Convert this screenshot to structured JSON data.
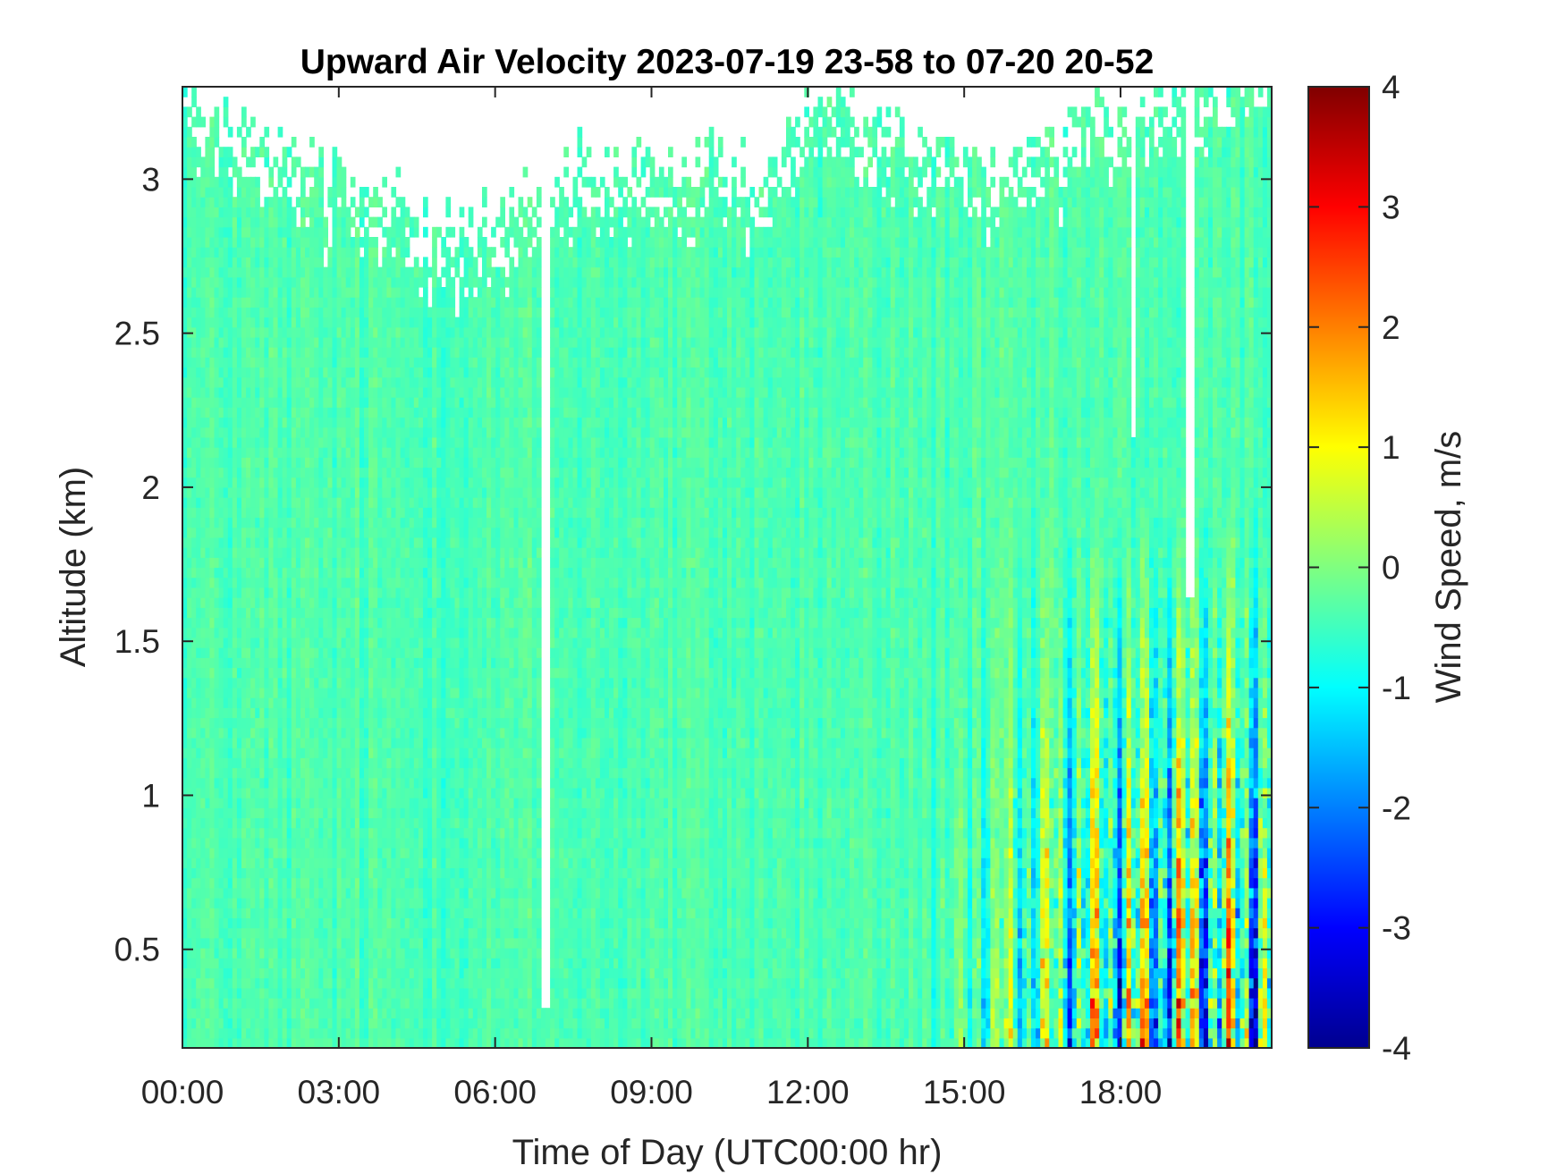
{
  "chart_data": {
    "type": "heatmap",
    "title": "Upward Air Velocity 2023-07-19 23-58 to 07-20 20-52",
    "xlabel": "Time of Day (UTC00:00 hr)",
    "ylabel": "Altitude (km)",
    "xlim_hours": [
      0,
      20.9
    ],
    "ylim_km": [
      0.18,
      3.3
    ],
    "x_ticks": [
      {
        "value": 0,
        "label": "00:00"
      },
      {
        "value": 3,
        "label": "03:00"
      },
      {
        "value": 6,
        "label": "06:00"
      },
      {
        "value": 9,
        "label": "09:00"
      },
      {
        "value": 12,
        "label": "12:00"
      },
      {
        "value": 15,
        "label": "15:00"
      },
      {
        "value": 18,
        "label": "18:00"
      }
    ],
    "y_ticks": [
      {
        "value": 0.5,
        "label": "0.5"
      },
      {
        "value": 1,
        "label": "1"
      },
      {
        "value": 1.5,
        "label": "1.5"
      },
      {
        "value": 2,
        "label": "2"
      },
      {
        "value": 2.5,
        "label": "2.5"
      },
      {
        "value": 3,
        "label": "3"
      }
    ],
    "colorbar": {
      "label": "Wind Speed, m/s",
      "colormap": "jet",
      "clim": [
        -4,
        4
      ],
      "ticks": [
        {
          "value": 4,
          "label": "4"
        },
        {
          "value": 3,
          "label": "3"
        },
        {
          "value": 2,
          "label": "2"
        },
        {
          "value": 1,
          "label": "1"
        },
        {
          "value": 0,
          "label": "0"
        },
        {
          "value": -1,
          "label": "-1"
        },
        {
          "value": -2,
          "label": "-2"
        },
        {
          "value": -3,
          "label": "-3"
        },
        {
          "value": -4,
          "label": "-4"
        }
      ]
    },
    "background_value_ms": -0.4,
    "data_gaps": [
      {
        "time_hr": 6.95,
        "altitude_km": [
          0.3,
          3.3
        ]
      },
      {
        "time_hr": 18.25,
        "altitude_km": [
          2.15,
          3.3
        ]
      },
      {
        "time_hr": 19.35,
        "altitude_km": [
          1.65,
          3.3
        ]
      }
    ],
    "data_top_km_by_time": [
      {
        "time_hr": 0,
        "top_km": 3.2
      },
      {
        "time_hr": 1,
        "top_km": 3.1
      },
      {
        "time_hr": 3.5,
        "top_km": 2.85
      },
      {
        "time_hr": 5.5,
        "top_km": 2.75
      },
      {
        "time_hr": 7.5,
        "top_km": 2.95
      },
      {
        "time_hr": 11.5,
        "top_km": 2.95
      },
      {
        "time_hr": 12,
        "top_km": 3.2
      },
      {
        "time_hr": 15,
        "top_km": 2.95
      },
      {
        "time_hr": 18,
        "top_km": 3.15
      },
      {
        "time_hr": 20.9,
        "top_km": 3.3
      }
    ],
    "convective_region": {
      "time_hr": [
        14,
        20.9
      ],
      "altitude_km": [
        0.18,
        2.0
      ],
      "peak_updraft_ms": 3.5,
      "peak_downdraft_ms": -3.5
    },
    "grid": false
  }
}
